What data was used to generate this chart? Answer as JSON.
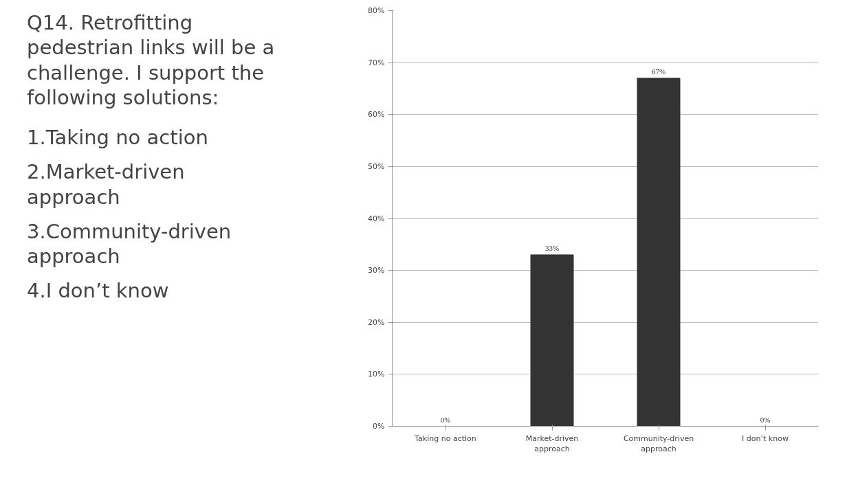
{
  "chart_data": {
    "type": "bar",
    "title": "Q14. Retrofitting pedestrian links will be a challenge. I support the following solutions:",
    "annotations": [
      "1.Taking no action",
      "2.Market-driven approach",
      "3.Community-driven approach",
      "4.I don’t know"
    ],
    "categories": [
      "Taking no action",
      "Market-driven approach",
      "Community-driven approach",
      "I don’t know"
    ],
    "values": [
      0,
      33,
      67,
      0
    ],
    "value_labels": [
      "0%",
      "33%",
      "67%",
      "0%"
    ],
    "color": "#333333",
    "ylim": [
      0,
      80
    ],
    "yticks": [
      {
        "value": 0,
        "label": "0%"
      },
      {
        "value": 10,
        "label": "10%"
      },
      {
        "value": 20,
        "label": "20%"
      },
      {
        "value": 30,
        "label": "30%"
      },
      {
        "value": 40,
        "label": "40%"
      },
      {
        "value": 50,
        "label": "50%"
      },
      {
        "value": 60,
        "label": "60%"
      },
      {
        "value": 70,
        "label": "70%"
      },
      {
        "value": 80,
        "label": "80%"
      }
    ],
    "grid": "y"
  }
}
